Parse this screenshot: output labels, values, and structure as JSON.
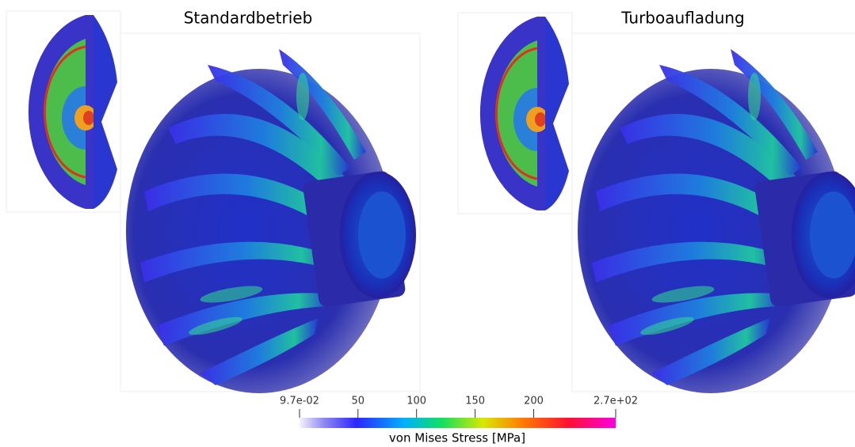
{
  "panels": [
    {
      "title": "Standardbetrieb"
    },
    {
      "title": "Turboaufladung"
    }
  ],
  "colorbar": {
    "title": "von Mises Stress [MPa]",
    "ticks": [
      {
        "value": 0.097,
        "label": "9.7e-02"
      },
      50,
      100,
      150,
      200,
      {
        "value": 270,
        "label": "2.7e+02"
      }
    ]
  }
}
